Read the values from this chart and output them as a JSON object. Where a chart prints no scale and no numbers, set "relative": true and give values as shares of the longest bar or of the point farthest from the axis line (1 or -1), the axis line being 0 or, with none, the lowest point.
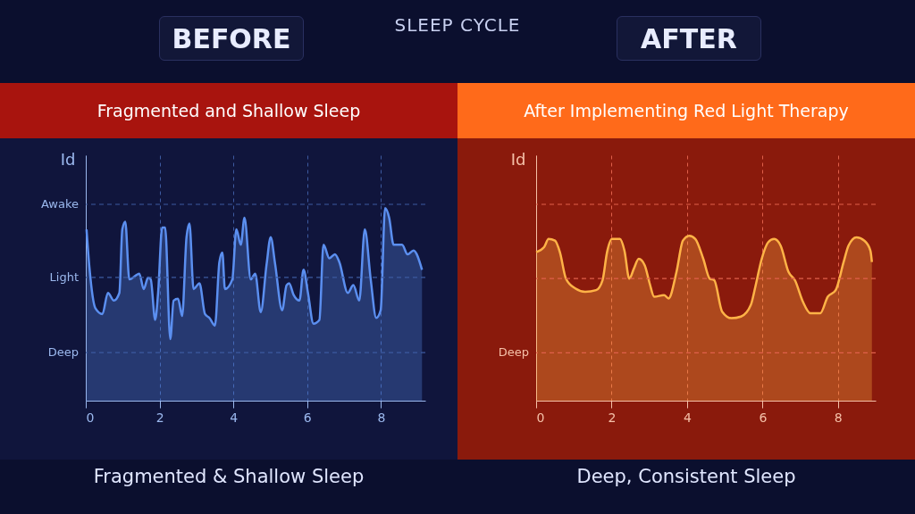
{
  "chart_data": [
    {
      "type": "area",
      "relative": true,
      "title": "BEFORE",
      "subtitle": "Fragmented and Shallow Sleep",
      "ylabel": "Id",
      "annotations": [
        "SLEEP CYCLE",
        "Fragmented & Shallow Sleep"
      ],
      "grid": "x",
      "marker": "none",
      "xlim": [
        0,
        9.2
      ],
      "xticks": [
        0,
        2,
        4,
        6,
        8
      ],
      "ref_lines": [
        {
          "axis": "y",
          "value": 0.25,
          "label": "Deep",
          "line_style": "dashed"
        },
        {
          "axis": "y",
          "value": 0.64,
          "label": "Light",
          "line_style": "dashed"
        },
        {
          "axis": "y",
          "value": 1.02,
          "label": "Awake",
          "line_style": "dashed"
        }
      ],
      "series": [
        {
          "color": "#5b8ff0",
          "x": [
            0.02,
            0.1,
            0.26,
            0.45,
            0.6,
            0.76,
            0.91,
            0.99,
            1.07,
            1.18,
            1.45,
            1.57,
            1.69,
            1.76,
            1.88,
            1.96,
            2.07,
            2.15,
            2.29,
            2.38,
            2.5,
            2.61,
            2.73,
            2.81,
            2.92,
            3.08,
            3.23,
            3.35,
            3.5,
            3.62,
            3.7,
            3.77,
            3.97,
            4.08,
            4.2,
            4.3,
            4.47,
            4.59,
            4.74,
            4.9,
            5.01,
            5.13,
            5.32,
            5.44,
            5.51,
            5.63,
            5.79,
            5.9,
            6.02,
            6.17,
            6.33,
            6.44,
            6.6,
            6.75,
            6.87,
            7.1,
            7.25,
            7.41,
            7.56,
            7.72,
            7.87,
            7.99,
            8.11,
            8.22,
            8.34,
            8.57,
            8.72,
            8.88,
            9.11
          ],
          "values": [
            0.89,
            0.69,
            0.48,
            0.45,
            0.56,
            0.52,
            0.56,
            0.89,
            0.93,
            0.63,
            0.66,
            0.58,
            0.64,
            0.63,
            0.42,
            0.56,
            0.9,
            0.9,
            0.32,
            0.52,
            0.53,
            0.44,
            0.85,
            0.92,
            0.58,
            0.61,
            0.45,
            0.43,
            0.39,
            0.72,
            0.77,
            0.58,
            0.63,
            0.89,
            0.81,
            0.95,
            0.63,
            0.66,
            0.46,
            0.71,
            0.85,
            0.71,
            0.47,
            0.6,
            0.61,
            0.55,
            0.52,
            0.68,
            0.56,
            0.4,
            0.42,
            0.81,
            0.74,
            0.76,
            0.72,
            0.56,
            0.6,
            0.52,
            0.89,
            0.63,
            0.43,
            0.47,
            1.0,
            0.95,
            0.81,
            0.81,
            0.76,
            0.78,
            0.68
          ]
        }
      ]
    },
    {
      "type": "area",
      "relative": true,
      "title": "AFTER",
      "subtitle": "After Implementing Red Light Therapy",
      "ylabel": "Id",
      "annotations": [
        "Deep, Consistent Sleep"
      ],
      "grid": "x",
      "marker": "none",
      "xlim": [
        0,
        9
      ],
      "xticks": [
        0,
        2,
        4,
        6,
        8
      ],
      "ref_lines": [
        {
          "axis": "y",
          "value": 0.29,
          "label": "Deep",
          "line_style": "dashed"
        },
        {
          "axis": "y",
          "value": 0.74,
          "label": null,
          "line_style": "dashed"
        },
        {
          "axis": "y",
          "value": 1.19,
          "label": null,
          "line_style": "dashed"
        }
      ],
      "series": [
        {
          "color": "#ffb347",
          "x": [
            0,
            0.21,
            0.33,
            0.5,
            0.63,
            0.79,
            1.04,
            1.3,
            1.59,
            1.76,
            1.88,
            2.01,
            2.22,
            2.34,
            2.47,
            2.59,
            2.72,
            2.88,
            3.01,
            3.13,
            3.39,
            3.51,
            3.72,
            3.89,
            4.06,
            4.22,
            4.43,
            4.6,
            4.72,
            4.93,
            5.18,
            5.43,
            5.69,
            5.81,
            5.98,
            6.15,
            6.31,
            6.48,
            6.69,
            6.86,
            7.07,
            7.27,
            7.53,
            7.73,
            7.94,
            8.15,
            8.28,
            8.49,
            8.7,
            8.86,
            8.9
          ],
          "values": [
            0.9,
            0.93,
            0.98,
            0.97,
            0.9,
            0.74,
            0.68,
            0.66,
            0.67,
            0.73,
            0.9,
            0.98,
            0.98,
            0.91,
            0.74,
            0.8,
            0.86,
            0.82,
            0.71,
            0.63,
            0.64,
            0.62,
            0.78,
            0.97,
            1.0,
            0.98,
            0.86,
            0.74,
            0.73,
            0.54,
            0.5,
            0.51,
            0.58,
            0.69,
            0.86,
            0.96,
            0.98,
            0.94,
            0.78,
            0.73,
            0.6,
            0.53,
            0.53,
            0.63,
            0.67,
            0.84,
            0.94,
            0.99,
            0.97,
            0.91,
            0.84
          ]
        }
      ]
    }
  ]
}
